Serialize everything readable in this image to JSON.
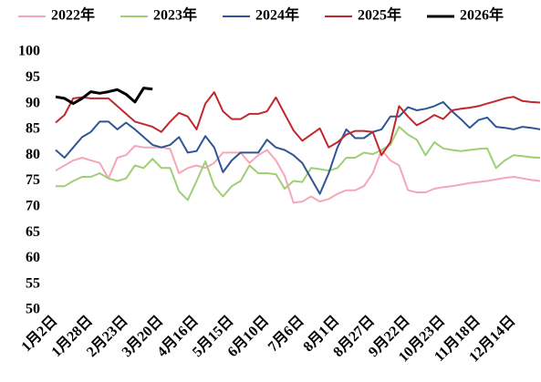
{
  "chart_data": {
    "type": "line",
    "categories": [
      "1月2日",
      null,
      null,
      null,
      "1月28日",
      null,
      null,
      null,
      "2月23日",
      null,
      null,
      null,
      "3月20日",
      null,
      null,
      null,
      "4月16日",
      null,
      null,
      null,
      "5月15日",
      null,
      null,
      null,
      "6月10日",
      null,
      null,
      null,
      "7月6日",
      null,
      null,
      null,
      "8月1日",
      null,
      null,
      null,
      "8月27日",
      null,
      null,
      null,
      "9月22日",
      null,
      null,
      null,
      "10月23日",
      null,
      null,
      null,
      "11月18日",
      null,
      null,
      null,
      "12月14日",
      null,
      null,
      null
    ],
    "series": [
      {
        "name": "2022年",
        "color": "#f4a7b9",
        "values": [
          77,
          78,
          79,
          79.5,
          79,
          78.5,
          75.5,
          79.5,
          80,
          81.8,
          81.5,
          81.5,
          81.5,
          81.2,
          76.5,
          77.5,
          78,
          77.5,
          78.5,
          80.5,
          80.5,
          80.5,
          78.5,
          80,
          81,
          79,
          76,
          70.8,
          71,
          72,
          71,
          71.5,
          72.5,
          73.2,
          73.2,
          74,
          76.5,
          81,
          79,
          78,
          73.2,
          72.8,
          72.8,
          73.5,
          73.8,
          74,
          74.3,
          74.6,
          74.8,
          75,
          75.3,
          75.6,
          75.8,
          75.5,
          75.2,
          75
        ]
      },
      {
        "name": "2023年",
        "color": "#9fcf74",
        "values": [
          74,
          74,
          75,
          75.8,
          75.8,
          76.5,
          75.5,
          75,
          75.5,
          78,
          77.5,
          79.3,
          77.5,
          77.5,
          73,
          71.3,
          75,
          78.8,
          74,
          72,
          74,
          75,
          78,
          76.5,
          76.5,
          76.3,
          73.5,
          75,
          74.8,
          77.5,
          77.3,
          77,
          77.5,
          79.5,
          79.5,
          80.5,
          80.2,
          81,
          82,
          85.5,
          84,
          83,
          80,
          82.5,
          81.3,
          81,
          80.8,
          81,
          81.2,
          81.3,
          77.5,
          79,
          80,
          79.8,
          79.6,
          79.5
        ]
      },
      {
        "name": "2024年",
        "color": "#2f5597",
        "values": [
          81,
          79.5,
          81.5,
          83.5,
          84.5,
          86.5,
          86.5,
          85,
          86.3,
          85,
          83.5,
          82,
          81.5,
          82,
          83.5,
          80.5,
          80.8,
          83.7,
          81.5,
          76.7,
          79,
          80.5,
          80.5,
          80.5,
          83,
          81.5,
          81,
          80,
          78.5,
          75.5,
          72.5,
          76.5,
          81.5,
          85,
          83.3,
          83.3,
          84.5,
          85,
          87.5,
          87.5,
          89.3,
          88.7,
          89,
          89.5,
          90.3,
          88.5,
          87,
          85.3,
          86.8,
          87.3,
          85.5,
          85.3,
          85,
          85.5,
          85.3,
          85
        ]
      },
      {
        "name": "2025年",
        "color": "#c0282e",
        "values": [
          86.3,
          87.8,
          91,
          91.2,
          91,
          91,
          91,
          89.5,
          88,
          86.5,
          86,
          85.5,
          84.5,
          86.5,
          88.2,
          87.5,
          85,
          90,
          92.2,
          88.5,
          87,
          87,
          88,
          88,
          88.5,
          91.2,
          88,
          84.8,
          82.8,
          84,
          85.2,
          81.5,
          82.5,
          84,
          84.7,
          84.7,
          84.5,
          80,
          82.5,
          89.5,
          87.5,
          85.8,
          86.7,
          87.8,
          87,
          88.7,
          89,
          89.2,
          89.5,
          90,
          90.5,
          91,
          91.3,
          90.5,
          90.3,
          90.2
        ]
      },
      {
        "name": "2026年",
        "color": "#000000",
        "values": [
          91.3,
          91,
          90,
          91,
          92.3,
          92,
          92.3,
          92.7,
          91.8,
          90.3,
          93,
          92.8,
          null,
          null,
          null,
          null,
          null,
          null,
          null,
          null,
          null,
          null,
          null,
          null,
          null,
          null,
          null,
          null,
          null,
          null,
          null,
          null,
          null,
          null,
          null,
          null,
          null,
          null,
          null,
          null,
          null,
          null,
          null,
          null,
          null,
          null,
          null,
          null,
          null,
          null,
          null,
          null,
          null,
          null,
          null,
          null
        ]
      }
    ],
    "ylim": [
      50,
      100
    ],
    "yticks": [
      50,
      55,
      60,
      65,
      70,
      75,
      80,
      85,
      90,
      95,
      100
    ]
  }
}
